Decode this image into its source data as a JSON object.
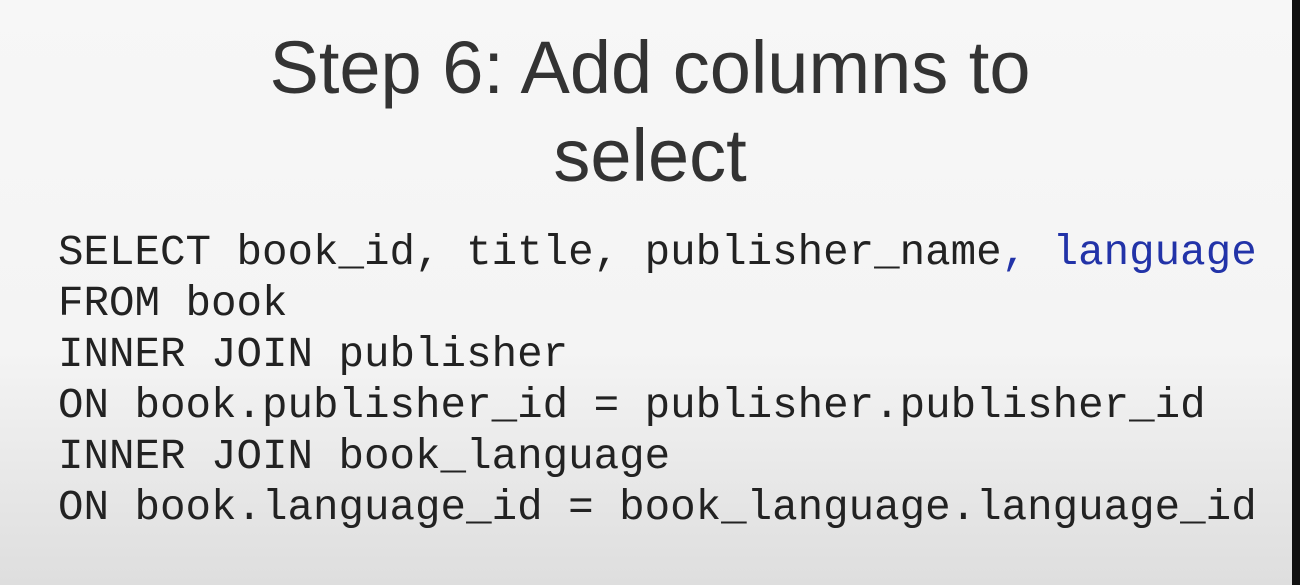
{
  "slide": {
    "title": "Step 6: Add columns to select",
    "code": {
      "lines": [
        [
          "SELECT book_id, title, publisher_name",
          ", language"
        ],
        [
          "FROM book"
        ],
        [
          "INNER JOIN publisher"
        ],
        [
          "ON book.publisher_id = publisher.publisher_id"
        ],
        [
          "INNER JOIN book_language"
        ],
        [
          "ON book.language_id = book_language.language_id"
        ]
      ]
    }
  }
}
